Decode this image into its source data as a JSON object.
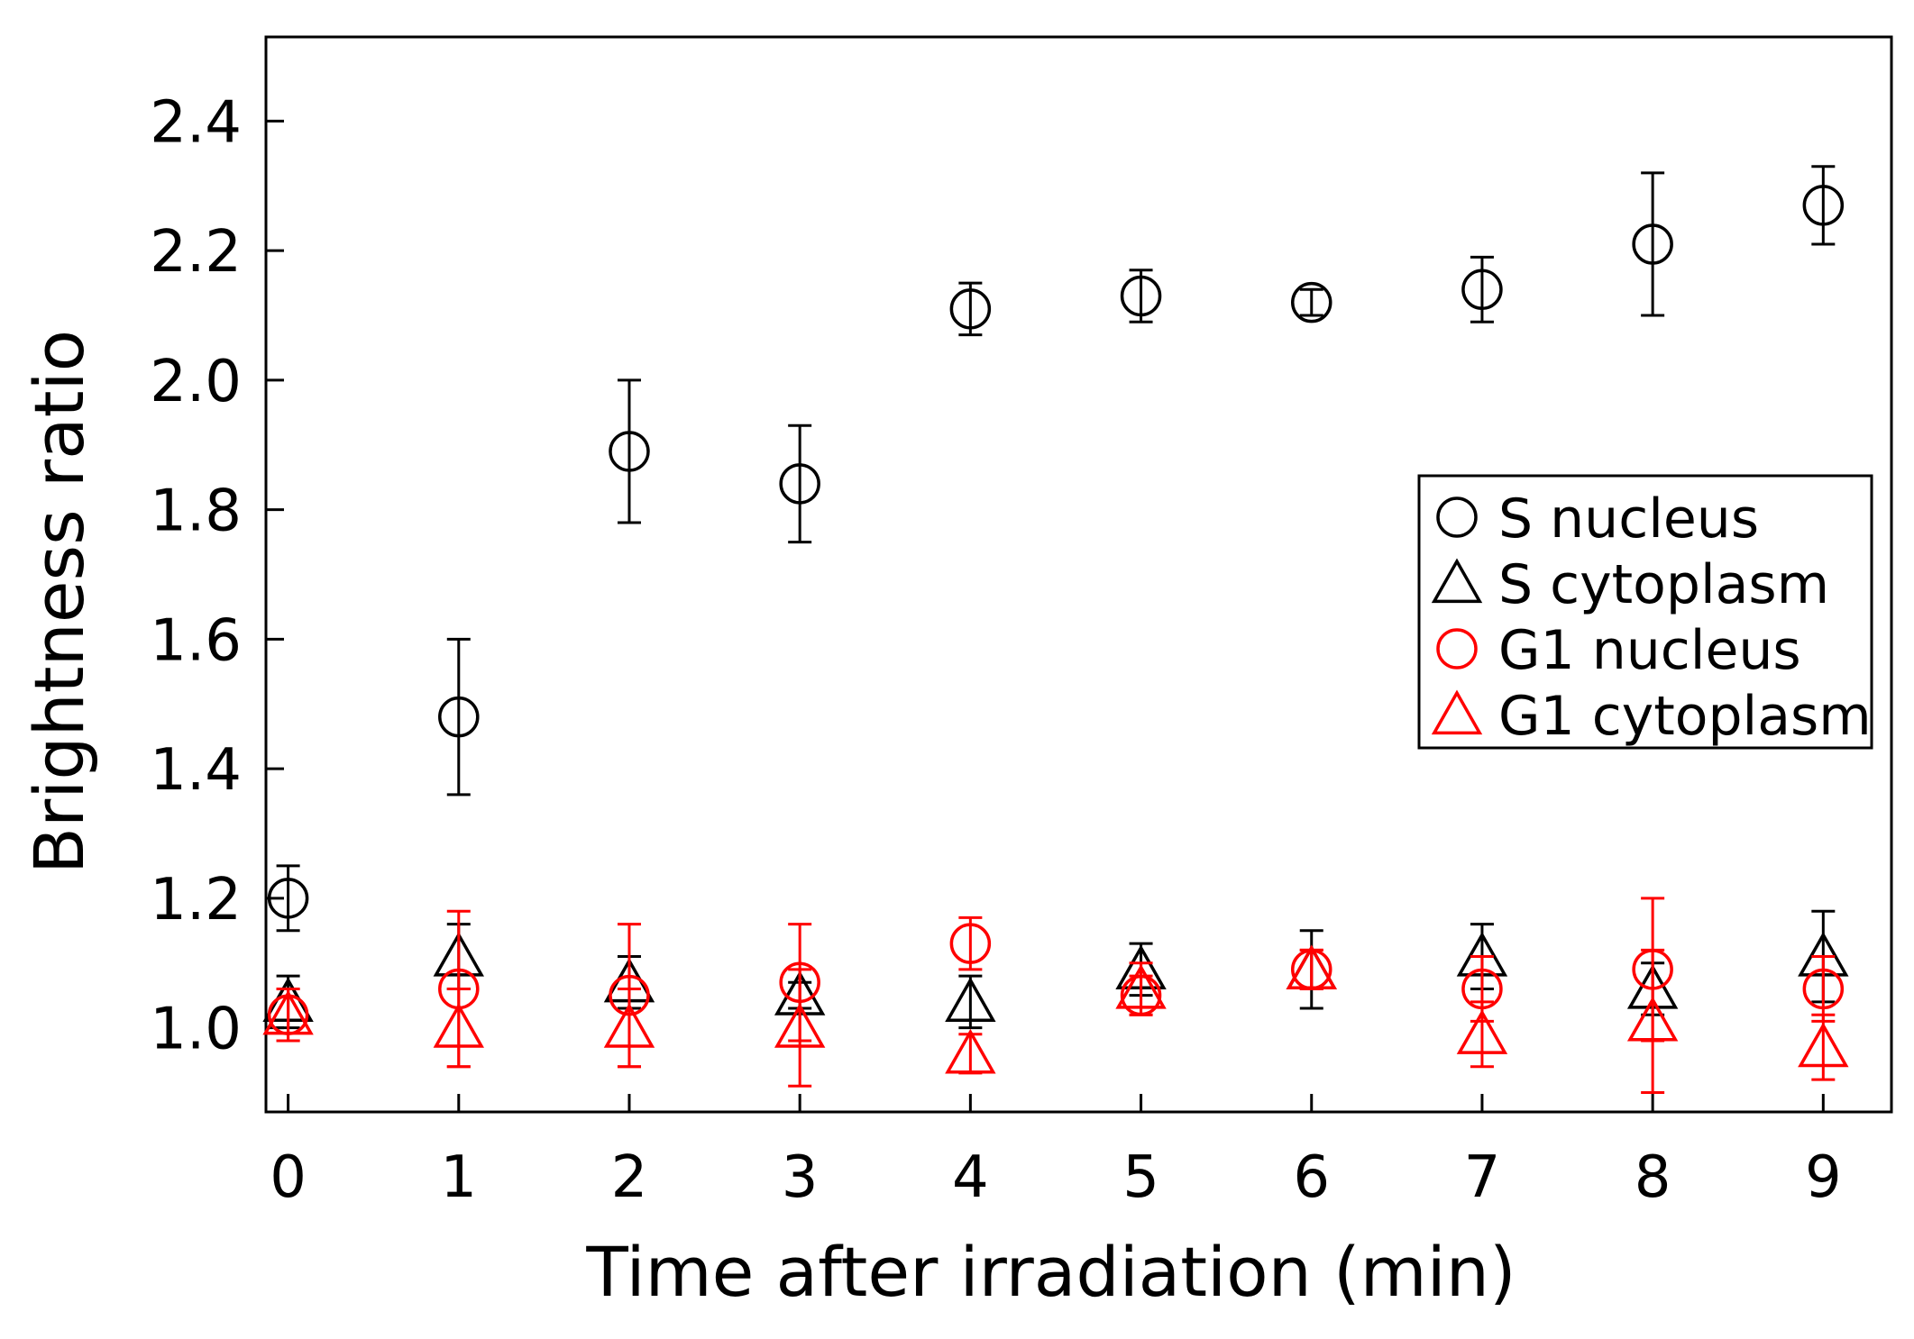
{
  "chart_data": {
    "type": "scatter",
    "title": "",
    "xlabel": "Time after irradiation (min)",
    "ylabel": "Brightness ratio",
    "xlim": [
      -0.13,
      9.4
    ],
    "ylim": [
      0.87,
      2.53
    ],
    "x_ticks": [
      0,
      1,
      2,
      3,
      4,
      5,
      6,
      7,
      8,
      9
    ],
    "y_ticks": [
      1.0,
      1.2,
      1.4,
      1.6,
      1.8,
      2.0,
      2.2,
      2.4
    ],
    "y_tick_labels": [
      "1.0",
      "1.2",
      "1.4",
      "1.6",
      "1.8",
      "2.0",
      "2.2",
      "2.4"
    ],
    "grid": false,
    "legend_position": "right",
    "colors": {
      "black": "#000000",
      "red": "#ff0000"
    },
    "series": [
      {
        "name": "S nucleus",
        "marker": "circle",
        "color": "#000000",
        "x": [
          0,
          1,
          2,
          3,
          4,
          5,
          6,
          7,
          8,
          9
        ],
        "y": [
          1.2,
          1.48,
          1.89,
          1.84,
          2.11,
          2.13,
          2.12,
          2.14,
          2.21,
          2.27
        ],
        "yerr": [
          0.05,
          0.12,
          0.11,
          0.09,
          0.04,
          0.04,
          0.02,
          0.05,
          0.11,
          0.06
        ]
      },
      {
        "name": "S cytoplasm",
        "marker": "triangle",
        "color": "#000000",
        "x": [
          0,
          1,
          2,
          3,
          4,
          5,
          6,
          7,
          8,
          9
        ],
        "y": [
          1.04,
          1.11,
          1.07,
          1.05,
          1.04,
          1.09,
          1.09,
          1.11,
          1.06,
          1.11
        ],
        "yerr": [
          0.04,
          0.05,
          0.04,
          0.02,
          0.04,
          0.04,
          0.06,
          0.05,
          0.04,
          0.07
        ]
      },
      {
        "name": "G1 nucleus",
        "marker": "circle",
        "color": "#ff0000",
        "x": [
          0,
          1,
          2,
          3,
          4,
          5,
          6,
          7,
          8,
          9
        ],
        "y": [
          1.02,
          1.06,
          1.05,
          1.07,
          1.13,
          1.05,
          1.09,
          1.06,
          1.09,
          1.06
        ],
        "yerr": [
          0.04,
          0.12,
          0.11,
          0.09,
          0.04,
          0.03,
          0.03,
          0.05,
          0.11,
          0.05
        ]
      },
      {
        "name": "G1 cytoplasm",
        "marker": "triangle",
        "color": "#ff0000",
        "x": [
          0,
          1,
          2,
          3,
          4,
          5,
          6,
          7,
          8,
          9
        ],
        "y": [
          1.02,
          1.0,
          1.0,
          1.0,
          0.96,
          1.06,
          1.09,
          0.99,
          1.01,
          0.97
        ],
        "yerr": [
          0.04,
          0.06,
          0.06,
          0.09,
          0.03,
          0.04,
          0.03,
          0.05,
          0.11,
          0.05
        ]
      }
    ]
  }
}
